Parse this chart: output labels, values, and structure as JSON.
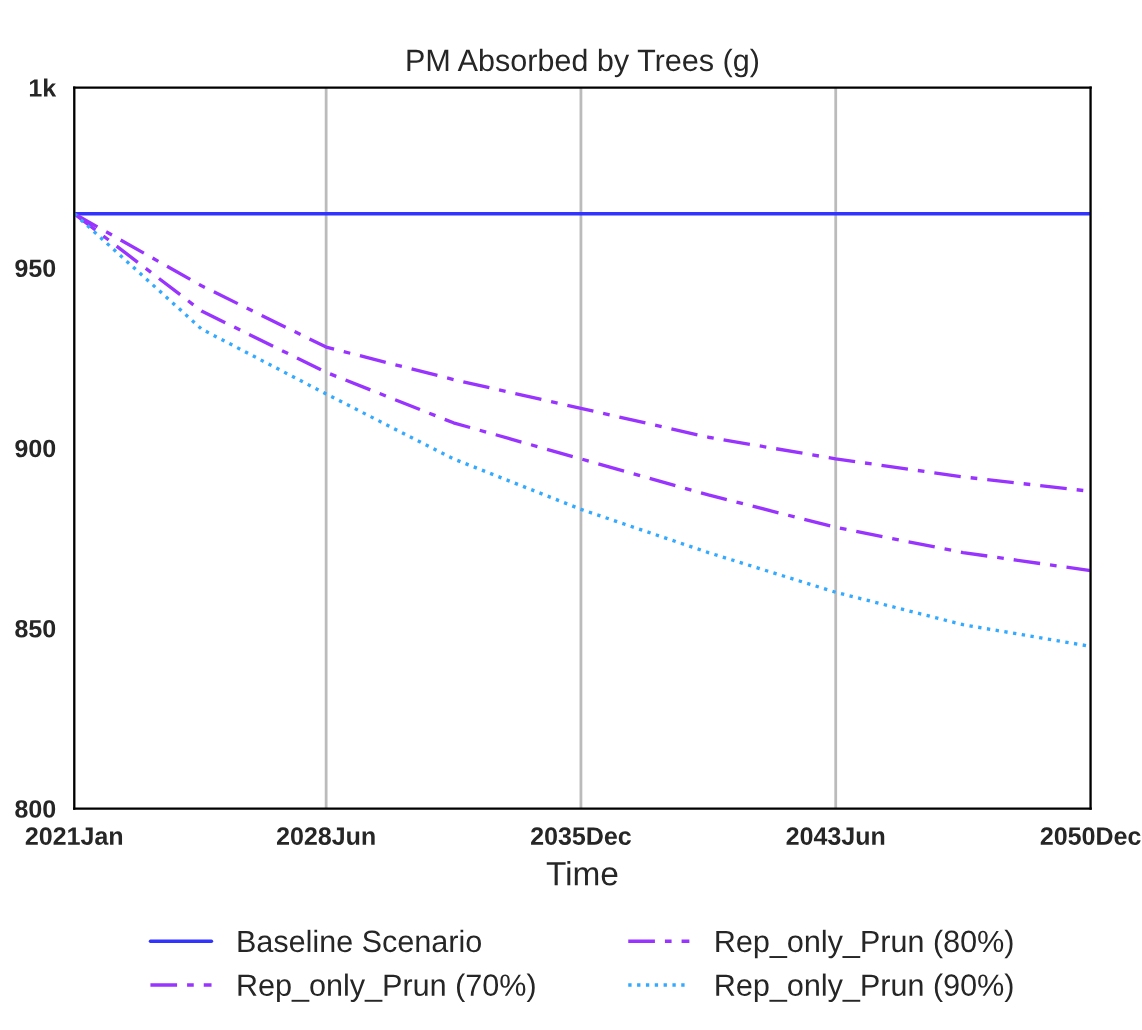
{
  "chart_data": {
    "type": "line",
    "title": "PM Absorbed by Trees (g)",
    "xlabel": "Time",
    "x": [
      "2021-01",
      "2024-10",
      "2028-06",
      "2032-03",
      "2035-12",
      "2039-09",
      "2043-06",
      "2047-03",
      "2050-12"
    ],
    "series": [
      {
        "name": "Baseline Scenario",
        "color": "#3333ff",
        "line_style": "solid",
        "values": [
          965,
          965,
          965,
          965,
          965,
          965,
          965,
          965,
          965
        ]
      },
      {
        "name": "Rep_only_Prun (70%)",
        "color": "#9933ff",
        "line_style": "dashed",
        "values": [
          965,
          945,
          928,
          919,
          911,
          903,
          897,
          892,
          888
        ]
      },
      {
        "name": "Rep_only_Prun (80%)",
        "color": "#9933ff",
        "line_style": "dashed",
        "values": [
          965,
          938,
          921,
          907,
          897,
          887,
          878,
          871,
          866
        ]
      },
      {
        "name": "Rep_only_Prun (90%)",
        "color": "#33aaff",
        "line_style": "dotted",
        "values": [
          965,
          933,
          915,
          897,
          883,
          871,
          860,
          851,
          845
        ]
      }
    ],
    "xlim": [
      "2021-01",
      "2050-12"
    ],
    "xticks": [
      {
        "value": "2021-01",
        "label": "2021Jan"
      },
      {
        "value": "2028-06",
        "label": "2028Jun"
      },
      {
        "value": "2035-12",
        "label": "2035Dec"
      },
      {
        "value": "2043-06",
        "label": "2043Jun"
      },
      {
        "value": "2050-12",
        "label": "2050Dec"
      }
    ],
    "ylim": [
      800,
      1000
    ],
    "yticks": [
      800,
      850,
      900,
      950,
      {
        "value": 1000,
        "label": "1k"
      }
    ],
    "grid": "x",
    "legend": "bottom"
  }
}
